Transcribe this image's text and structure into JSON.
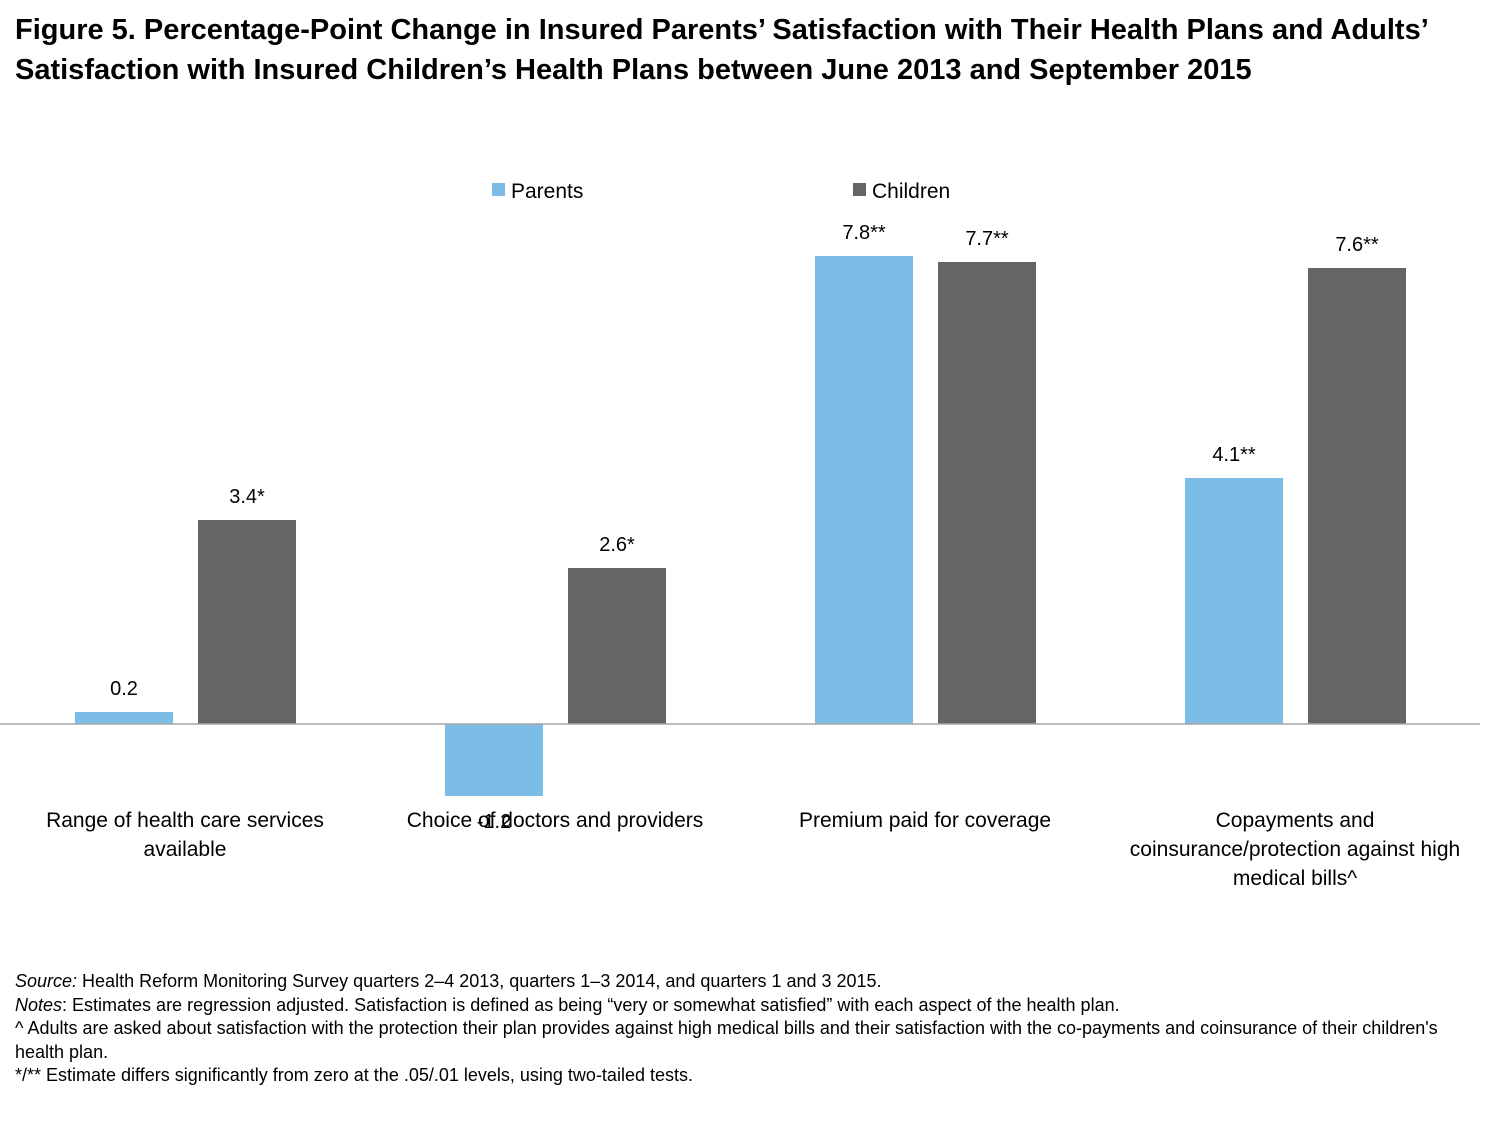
{
  "title": "Figure 5. Percentage-Point Change in Insured Parents’ Satisfaction with Their Health Plans and Adults’ Satisfaction with Insured Children’s Health Plans between June 2013 and September 2015",
  "chart_data": {
    "type": "bar",
    "title": "Figure 5. Percentage-Point Change in Insured Parents’ Satisfaction with Their Health Plans and Adults’ Satisfaction with Insured Children’s Health Plans between June 2013 and September 2015",
    "xlabel": "",
    "ylabel": "",
    "ylim": [
      -1.6,
      9.4
    ],
    "grid": false,
    "legend_position": "top-center",
    "categories": [
      [
        "Range of health care services",
        "available"
      ],
      [
        "Choice of doctors and providers"
      ],
      [
        "Premium paid for coverage"
      ],
      [
        "Copayments and",
        "coinsurance/protection against high",
        "medical bills^"
      ]
    ],
    "series": [
      {
        "name": "Parents",
        "color": "#7bbde6",
        "values": [
          0.2,
          -1.2,
          7.8,
          4.1
        ],
        "labels": [
          "0.2",
          "-1.2",
          "7.8**",
          "4.1**"
        ]
      },
      {
        "name": "Children",
        "color": "#646567",
        "values": [
          3.4,
          2.6,
          7.7,
          7.6
        ],
        "labels": [
          "3.4*",
          "2.6*",
          "7.7**",
          "7.6**"
        ]
      }
    ]
  },
  "notes": {
    "source_label": "Source:",
    "source_text": " Health Reform Monitoring Survey quarters 2–4 2013, quarters 1–3 2014, and quarters 1 and 3 2015.",
    "notes_label": "Notes",
    "notes_text": ": Estimates are regression adjusted.  Satisfaction is defined as being “very or somewhat satisfied” with each aspect of the health plan.",
    "caret_note": "^ Adults are asked about satisfaction with the protection their plan provides against high medical bills and their satisfaction with the co-payments and coinsurance of their children's health plan.",
    "sig_note": "*/** Estimate differs significantly from zero at the .05/.01 levels, using two-tailed tests."
  }
}
